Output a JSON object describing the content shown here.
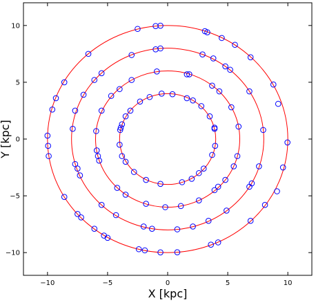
{
  "chart_data": {
    "type": "scatter",
    "title": "",
    "xlabel": "X [kpc]",
    "ylabel": "Y [kpc]",
    "xlim": [
      -12,
      12
    ],
    "ylim": [
      -12,
      12
    ],
    "x_ticks": [
      -10,
      -5,
      0,
      5,
      10
    ],
    "y_ticks": [
      -10,
      -5,
      0,
      5,
      10
    ],
    "x_tick_labels": [
      "−10",
      "−5",
      "0",
      "5",
      "10"
    ],
    "y_tick_labels": [
      "−10",
      "−5",
      "0",
      "5",
      "10"
    ],
    "grid": false,
    "legend": "none",
    "circles": {
      "color": "#ff0000",
      "radii": [
        4,
        6,
        8,
        10
      ]
    },
    "series": [
      {
        "marker": "open-circle",
        "color": "#0000ff",
        "points": [
          [
            -0.5,
            4.0
          ],
          [
            -1.5,
            3.7
          ],
          [
            -2.3,
            3.3
          ],
          [
            -3.1,
            2.5
          ],
          [
            -3.5,
            2.0
          ],
          [
            -3.8,
            1.3
          ],
          [
            -3.9,
            1.0
          ],
          [
            -3.95,
            0.8
          ],
          [
            -4.0,
            -0.5
          ],
          [
            -3.8,
            -1.5
          ],
          [
            -3.5,
            -2.0
          ],
          [
            -2.8,
            -2.9
          ],
          [
            -1.8,
            -3.6
          ],
          [
            -0.6,
            -3.95
          ],
          [
            1.2,
            -3.8
          ],
          [
            2.0,
            -3.5
          ],
          [
            2.6,
            -3.0
          ],
          [
            3.0,
            -2.6
          ],
          [
            3.7,
            -1.4
          ],
          [
            3.95,
            -0.6
          ],
          [
            3.9,
            0.9
          ],
          [
            3.9,
            1.0
          ],
          [
            3.5,
            2.0
          ],
          [
            2.8,
            2.9
          ],
          [
            2.1,
            3.4
          ],
          [
            1.6,
            3.6
          ],
          [
            0.4,
            3.95
          ],
          [
            -0.9,
            5.95
          ],
          [
            -3.0,
            5.2
          ],
          [
            -4.0,
            4.4
          ],
          [
            -4.7,
            3.8
          ],
          [
            -5.5,
            2.5
          ],
          [
            -5.95,
            0.7
          ],
          [
            -5.9,
            -1.0
          ],
          [
            -5.8,
            -1.5
          ],
          [
            -5.7,
            -1.9
          ],
          [
            -4.2,
            -4.3
          ],
          [
            -3.5,
            -4.9
          ],
          [
            -1.8,
            -5.7
          ],
          [
            -0.2,
            -6.0
          ],
          [
            1.1,
            -5.9
          ],
          [
            2.6,
            -5.4
          ],
          [
            3.9,
            -4.5
          ],
          [
            4.2,
            -4.2
          ],
          [
            4.8,
            -3.6
          ],
          [
            5.5,
            -2.4
          ],
          [
            5.8,
            -1.5
          ],
          [
            5.9,
            1.1
          ],
          [
            5.3,
            2.8
          ],
          [
            4.3,
            4.2
          ],
          [
            3.7,
            4.7
          ],
          [
            1.8,
            5.7
          ],
          [
            1.6,
            5.7
          ],
          [
            -1.0,
            7.9
          ],
          [
            -0.6,
            7.98
          ],
          [
            -3.0,
            7.4
          ],
          [
            -5.5,
            5.8
          ],
          [
            -6.1,
            5.2
          ],
          [
            -7.0,
            3.9
          ],
          [
            -7.7,
            2.5
          ],
          [
            -7.9,
            0.9
          ],
          [
            -7.7,
            -2.2
          ],
          [
            -7.5,
            -2.6
          ],
          [
            -7.3,
            -3.2
          ],
          [
            -5.5,
            -5.8
          ],
          [
            -4.3,
            -6.7
          ],
          [
            -2.0,
            -7.7
          ],
          [
            -1.3,
            -7.9
          ],
          [
            0.8,
            -7.95
          ],
          [
            2.1,
            -7.7
          ],
          [
            3.4,
            -7.2
          ],
          [
            4.9,
            -6.3
          ],
          [
            6.8,
            -4.2
          ],
          [
            7.0,
            -3.9
          ],
          [
            7.6,
            -2.4
          ],
          [
            7.95,
            0.8
          ],
          [
            6.8,
            4.2
          ],
          [
            5.2,
            6.1
          ],
          [
            4.8,
            6.4
          ],
          [
            3.8,
            7.1
          ],
          [
            2.9,
            7.45
          ],
          [
            -1.0,
            9.95
          ],
          [
            -0.6,
            9.98
          ],
          [
            -2.5,
            9.7
          ],
          [
            -6.6,
            7.5
          ],
          [
            -8.6,
            5.0
          ],
          [
            -9.3,
            3.6
          ],
          [
            -9.6,
            2.6
          ],
          [
            -10.0,
            0.3
          ],
          [
            -9.95,
            -0.6
          ],
          [
            -9.9,
            -1.5
          ],
          [
            -8.6,
            -5.1
          ],
          [
            -7.5,
            -6.6
          ],
          [
            -7.2,
            -6.9
          ],
          [
            -6.1,
            -7.9
          ],
          [
            -5.3,
            -8.5
          ],
          [
            -5.0,
            -8.7
          ],
          [
            -2.4,
            -9.7
          ],
          [
            -1.9,
            -9.8
          ],
          [
            -0.6,
            -9.98
          ],
          [
            0.8,
            -9.97
          ],
          [
            3.6,
            -9.3
          ],
          [
            4.2,
            -9.1
          ],
          [
            6.9,
            -7.2
          ],
          [
            8.1,
            -5.8
          ],
          [
            9.1,
            -4.6
          ],
          [
            9.6,
            -2.5
          ],
          [
            9.97,
            -0.3
          ],
          [
            9.2,
            3.1
          ],
          [
            8.8,
            4.8
          ],
          [
            6.9,
            7.2
          ],
          [
            5.6,
            8.3
          ],
          [
            4.5,
            8.9
          ],
          [
            3.3,
            9.4
          ],
          [
            3.1,
            9.5
          ]
        ]
      }
    ]
  }
}
